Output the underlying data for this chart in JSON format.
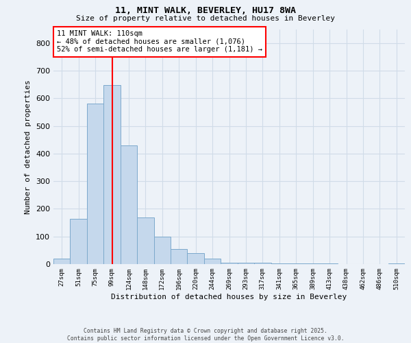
{
  "title1": "11, MINT WALK, BEVERLEY, HU17 8WA",
  "title2": "Size of property relative to detached houses in Beverley",
  "xlabel": "Distribution of detached houses by size in Beverley",
  "ylabel": "Number of detached properties",
  "bin_labels": [
    "27sqm",
    "51sqm",
    "75sqm",
    "99sqm",
    "124sqm",
    "148sqm",
    "172sqm",
    "196sqm",
    "220sqm",
    "244sqm",
    "269sqm",
    "293sqm",
    "317sqm",
    "341sqm",
    "365sqm",
    "389sqm",
    "413sqm",
    "438sqm",
    "462sqm",
    "486sqm",
    "510sqm"
  ],
  "bar_values": [
    20,
    165,
    580,
    648,
    430,
    170,
    100,
    55,
    40,
    20,
    5,
    5,
    5,
    3,
    2,
    2,
    2,
    0,
    0,
    0,
    2
  ],
  "bar_color": "#c5d8ec",
  "bar_edge_color": "#7ca9cc",
  "vline_x": 3,
  "vline_color": "red",
  "annotation_text": "11 MINT WALK: 110sqm\n← 48% of detached houses are smaller (1,076)\n52% of semi-detached houses are larger (1,181) →",
  "annotation_box_color": "white",
  "annotation_box_edge_color": "red",
  "ylim": [
    0,
    850
  ],
  "yticks": [
    0,
    100,
    200,
    300,
    400,
    500,
    600,
    700,
    800
  ],
  "footer_line1": "Contains HM Land Registry data © Crown copyright and database right 2025.",
  "footer_line2": "Contains public sector information licensed under the Open Government Licence v3.0.",
  "background_color": "#edf2f8",
  "grid_color": "#d0dce8"
}
